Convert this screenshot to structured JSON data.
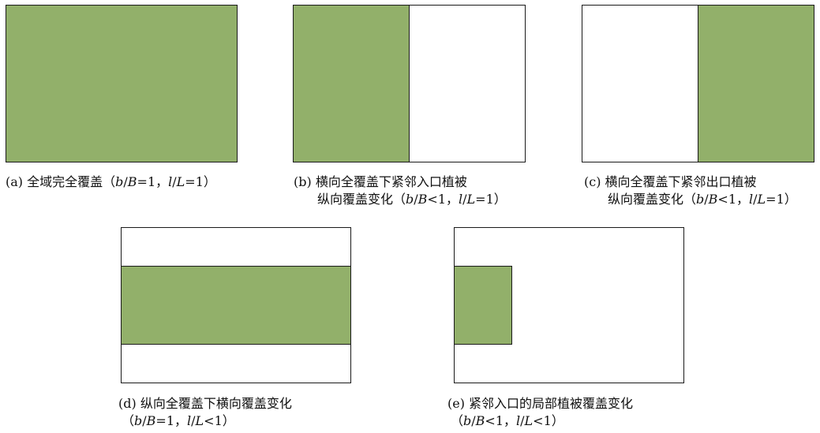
{
  "panels": {
    "a": {
      "label": "(a)",
      "text": "全域完全覆盖（",
      "ratio_b": "b",
      "slash_b": "/",
      "ratio_B": "B",
      "eq_b": "=1，",
      "ratio_l": "l",
      "slash_l": "/",
      "ratio_L": "L",
      "eq_l": "=1）",
      "vegetation": {
        "cover_x": [
          0,
          1
        ],
        "cover_y": [
          0,
          1
        ]
      }
    },
    "b": {
      "label": "(b)",
      "line1": "横向全覆盖下紧邻入口植被",
      "line2_text": "纵向覆盖变化（",
      "ratio_b": "b",
      "slash_b": "/",
      "ratio_B": "B",
      "eq_b": "<1，",
      "ratio_l": "l",
      "slash_l": "/",
      "ratio_L": "L",
      "eq_l": "=1）",
      "vegetation": {
        "cover_x": [
          0,
          0.5
        ],
        "cover_y": [
          0,
          1
        ]
      }
    },
    "c": {
      "label": "(c)",
      "line1": "横向全覆盖下紧邻出口植被",
      "line2_text": "纵向覆盖变化（",
      "ratio_b": "b",
      "slash_b": "/",
      "ratio_B": "B",
      "eq_b": "<1，",
      "ratio_l": "l",
      "slash_l": "/",
      "ratio_L": "L",
      "eq_l": "=1）",
      "vegetation": {
        "cover_x": [
          0.5,
          1
        ],
        "cover_y": [
          0,
          1
        ]
      }
    },
    "d": {
      "label": "(d)",
      "line1": "纵向全覆盖下横向覆盖变化",
      "line2_open": "（",
      "ratio_b": "b",
      "slash_b": "/",
      "ratio_B": "B",
      "eq_b": "=1，",
      "ratio_l": "l",
      "slash_l": "/",
      "ratio_L": "L",
      "eq_l": "<1）",
      "vegetation": {
        "cover_x": [
          0,
          1
        ],
        "cover_y": [
          0.25,
          0.75
        ]
      }
    },
    "e": {
      "label": "(e)",
      "line1": "紧邻入口的局部植被覆盖变化",
      "line2_open": "（",
      "ratio_b": "b",
      "slash_b": "/",
      "ratio_B": "B",
      "eq_b": "<1，",
      "ratio_l": "l",
      "slash_l": "/",
      "ratio_L": "L",
      "eq_l": "<1）",
      "vegetation": {
        "cover_x": [
          0,
          0.25
        ],
        "cover_y": [
          0.25,
          0.75
        ]
      }
    }
  },
  "colors": {
    "vegetation": "#92b06a",
    "outline": "#1a1a1a",
    "background": "#ffffff"
  }
}
